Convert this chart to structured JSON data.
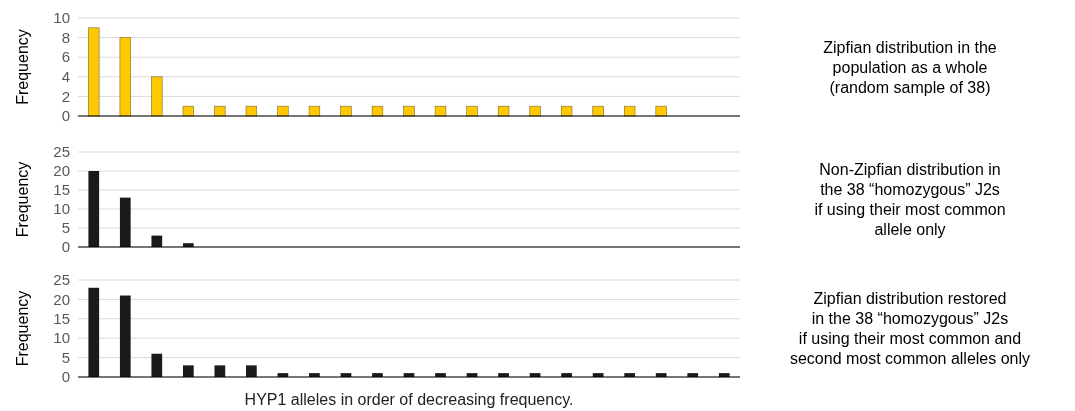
{
  "chart_data": [
    {
      "type": "bar",
      "ylabel": "Frequency",
      "categories": [
        null,
        null,
        null,
        null,
        null,
        null,
        null,
        null,
        null,
        null,
        null,
        null,
        null,
        null,
        null,
        null,
        null,
        null,
        null,
        null,
        null
      ],
      "values": [
        9,
        8,
        4,
        1,
        1,
        1,
        1,
        1,
        1,
        1,
        1,
        1,
        1,
        1,
        1,
        1,
        1,
        1,
        1,
        null,
        null
      ],
      "color": "#ffc800",
      "ylim": [
        0,
        10
      ],
      "yticks": [
        0,
        2,
        4,
        6,
        8,
        10
      ],
      "grid": "y",
      "tick_labels": "y",
      "annotations": [
        "Zipfian distribution in the",
        "population as a whole",
        "(random sample of 38)"
      ]
    },
    {
      "type": "bar",
      "ylabel": "Frequency",
      "categories": [
        null,
        null,
        null,
        null,
        null,
        null,
        null,
        null,
        null,
        null,
        null,
        null,
        null,
        null,
        null,
        null,
        null,
        null,
        null,
        null,
        null
      ],
      "values": [
        20,
        13,
        3,
        1,
        null,
        null,
        null,
        null,
        null,
        null,
        null,
        null,
        null,
        null,
        null,
        null,
        null,
        null,
        null,
        null,
        null
      ],
      "color": "#1a1a1a",
      "ylim": [
        0,
        25
      ],
      "yticks": [
        0,
        5,
        10,
        15,
        20,
        25
      ],
      "grid": "y",
      "tick_labels": "y",
      "annotations": [
        "Non-Zipfian distribution in",
        "the 38 “homozygous” J2s",
        "if using their most common",
        "allele only"
      ]
    },
    {
      "type": "bar",
      "ylabel": "Frequency",
      "xlabel": "HYP1 alleles in order of decreasing frequency.",
      "categories": [
        null,
        null,
        null,
        null,
        null,
        null,
        null,
        null,
        null,
        null,
        null,
        null,
        null,
        null,
        null,
        null,
        null,
        null,
        null,
        null,
        null
      ],
      "values": [
        23,
        21,
        6,
        3,
        3,
        3,
        1,
        1,
        1,
        1,
        1,
        1,
        1,
        1,
        1,
        1,
        1,
        1,
        1,
        1,
        1
      ],
      "color": "#1a1a1a",
      "ylim": [
        0,
        25
      ],
      "yticks": [
        0,
        5,
        10,
        15,
        20,
        25
      ],
      "grid": "y",
      "tick_labels": "y",
      "annotations": [
        "Zipfian distribution restored",
        "in the 38 “homozygous” J2s",
        "if using their most common and",
        "second most common alleles only"
      ]
    }
  ]
}
